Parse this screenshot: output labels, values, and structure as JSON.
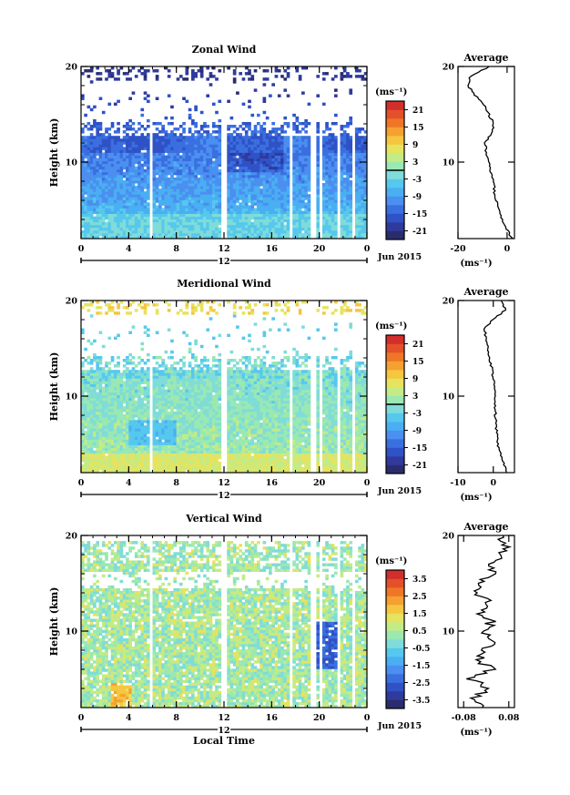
{
  "chart_data": [
    {
      "type": "heatmap",
      "title": "Zonal Wind",
      "ylabel": "Height (km)",
      "xticks": [
        "0",
        "4",
        "8",
        "12",
        "16",
        "20",
        "0"
      ],
      "xlim": [
        0,
        24
      ],
      "yticks": [
        "10",
        "20"
      ],
      "ylim": [
        2,
        20
      ],
      "day_label": "12",
      "date_label": "Jun 2015",
      "colorbar": {
        "unit": "(ms⁻¹)",
        "ticks": [
          "21",
          "15",
          "9",
          "3",
          "-3",
          "-9",
          "-15",
          "-21"
        ],
        "range": [
          -24,
          24
        ],
        "zero_line": true
      },
      "field": "zonal",
      "profile": {
        "title": "Average",
        "xticks": [
          "-20",
          "0"
        ],
        "xlim": [
          -20,
          3
        ],
        "xlabel": "(ms⁻¹)",
        "yticks": [
          "10",
          "20"
        ],
        "height_km": [
          2,
          3,
          4,
          5,
          6,
          7,
          8,
          9,
          10,
          11,
          12,
          13,
          14,
          15,
          16,
          17,
          18,
          19,
          20
        ],
        "value": [
          2.0,
          0.0,
          -2.0,
          -3.5,
          -4.5,
          -5.2,
          -5.5,
          -6.5,
          -7.5,
          -8.5,
          -9.0,
          -6.5,
          -5.5,
          -7.5,
          -9.5,
          -13.0,
          -16.0,
          -15.0,
          -7.0
        ]
      }
    },
    {
      "type": "heatmap",
      "title": "Meridional Wind",
      "ylabel": "Height (km)",
      "xticks": [
        "0",
        "4",
        "8",
        "12",
        "16",
        "20",
        "0"
      ],
      "xlim": [
        0,
        24
      ],
      "yticks": [
        "10",
        "20"
      ],
      "ylim": [
        2,
        20
      ],
      "day_label": "12",
      "date_label": "Jun 2015",
      "colorbar": {
        "unit": "(ms⁻¹)",
        "ticks": [
          "21",
          "15",
          "9",
          "3",
          "-3",
          "-9",
          "-15",
          "-21"
        ],
        "range": [
          -24,
          24
        ],
        "zero_line": true
      },
      "field": "meridional",
      "profile": {
        "title": "Average",
        "xticks": [
          "-10",
          "0"
        ],
        "xlim": [
          -10,
          6
        ],
        "xlabel": "(ms⁻¹)",
        "yticks": [
          "10",
          "20"
        ],
        "height_km": [
          2,
          3,
          4,
          5,
          6,
          7,
          8,
          9,
          10,
          11,
          12,
          13,
          14,
          15,
          16,
          17,
          18,
          19,
          20
        ],
        "value": [
          4.0,
          3.0,
          2.0,
          1.2,
          1.0,
          0.8,
          0.6,
          0.5,
          0.3,
          0.2,
          0.0,
          -0.5,
          -1.0,
          -1.5,
          -2.0,
          -2.5,
          0.0,
          3.5,
          2.0
        ]
      }
    },
    {
      "type": "heatmap",
      "title": "Vertical Wind",
      "ylabel": "Height (km)",
      "xlabel": "Local Time",
      "xticks": [
        "0",
        "4",
        "8",
        "12",
        "16",
        "20",
        "0"
      ],
      "xlim": [
        0,
        24
      ],
      "yticks": [
        "10",
        "20"
      ],
      "ylim": [
        2,
        20
      ],
      "day_label": "12",
      "date_label": "Jun 2015",
      "colorbar": {
        "unit": "(ms⁻¹)",
        "ticks": [
          "3.5",
          "2.5",
          "1.5",
          "0.5",
          "-0.5",
          "-1.5",
          "-2.5",
          "-3.5"
        ],
        "range": [
          -4,
          4
        ],
        "zero_line": false
      },
      "field": "vertical",
      "profile": {
        "title": "Average",
        "xticks": [
          "-0.08",
          "0.08"
        ],
        "xlim": [
          -0.1,
          0.1
        ],
        "xlabel": "(ms⁻¹)",
        "yticks": [
          "10",
          "20"
        ],
        "height_km": [
          2,
          3,
          4,
          5,
          6,
          7,
          8,
          9,
          10,
          11,
          12,
          13,
          14,
          15,
          16,
          17,
          18,
          19,
          20
        ],
        "value": [
          -0.02,
          -0.04,
          0.01,
          -0.05,
          0.02,
          -0.03,
          0.0,
          0.03,
          -0.01,
          0.02,
          -0.02,
          0.01,
          -0.04,
          -0.03,
          0.02,
          0.03,
          0.05,
          0.07,
          0.06
        ]
      }
    }
  ]
}
